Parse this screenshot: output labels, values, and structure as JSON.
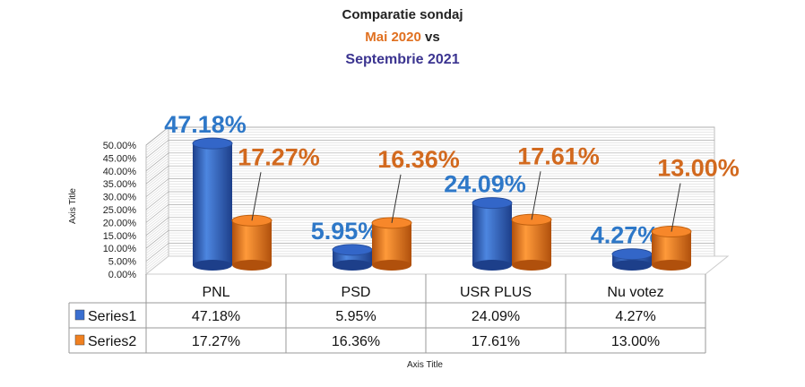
{
  "chart_data": {
    "type": "bar",
    "title_lines": [
      {
        "text": "Comparatie sondaj",
        "color": "#222222"
      },
      {
        "text": "Mai 2020",
        "suffix": " vs",
        "color": "#e07020"
      },
      {
        "text": "Septembrie 2021",
        "color": "#3b3490"
      }
    ],
    "categories": [
      "PNL",
      "PSD",
      "USR PLUS",
      "Nu votez"
    ],
    "series": [
      {
        "name": "Series1",
        "values": [
          47.18,
          5.95,
          24.09,
          4.27
        ],
        "labels": [
          "47.18%",
          "5.95%",
          "24.09%",
          "4.27%"
        ],
        "color": "#3a6fd0",
        "label_color": "#2e78c8"
      },
      {
        "name": "Series2",
        "values": [
          17.27,
          16.36,
          17.61,
          13.0
        ],
        "labels": [
          "17.27%",
          "16.36%",
          "17.61%",
          "13.00%"
        ],
        "color": "#f08020",
        "label_color": "#d2691e"
      }
    ],
    "yticks": [
      "0.00%",
      "5.00%",
      "10.00%",
      "15.00%",
      "20.00%",
      "25.00%",
      "30.00%",
      "35.00%",
      "40.00%",
      "45.00%",
      "50.00%"
    ],
    "ylim": [
      0,
      50
    ],
    "xlabel": "Axis Title",
    "ylabel": "Axis Title",
    "data_table": true,
    "grid": true
  }
}
